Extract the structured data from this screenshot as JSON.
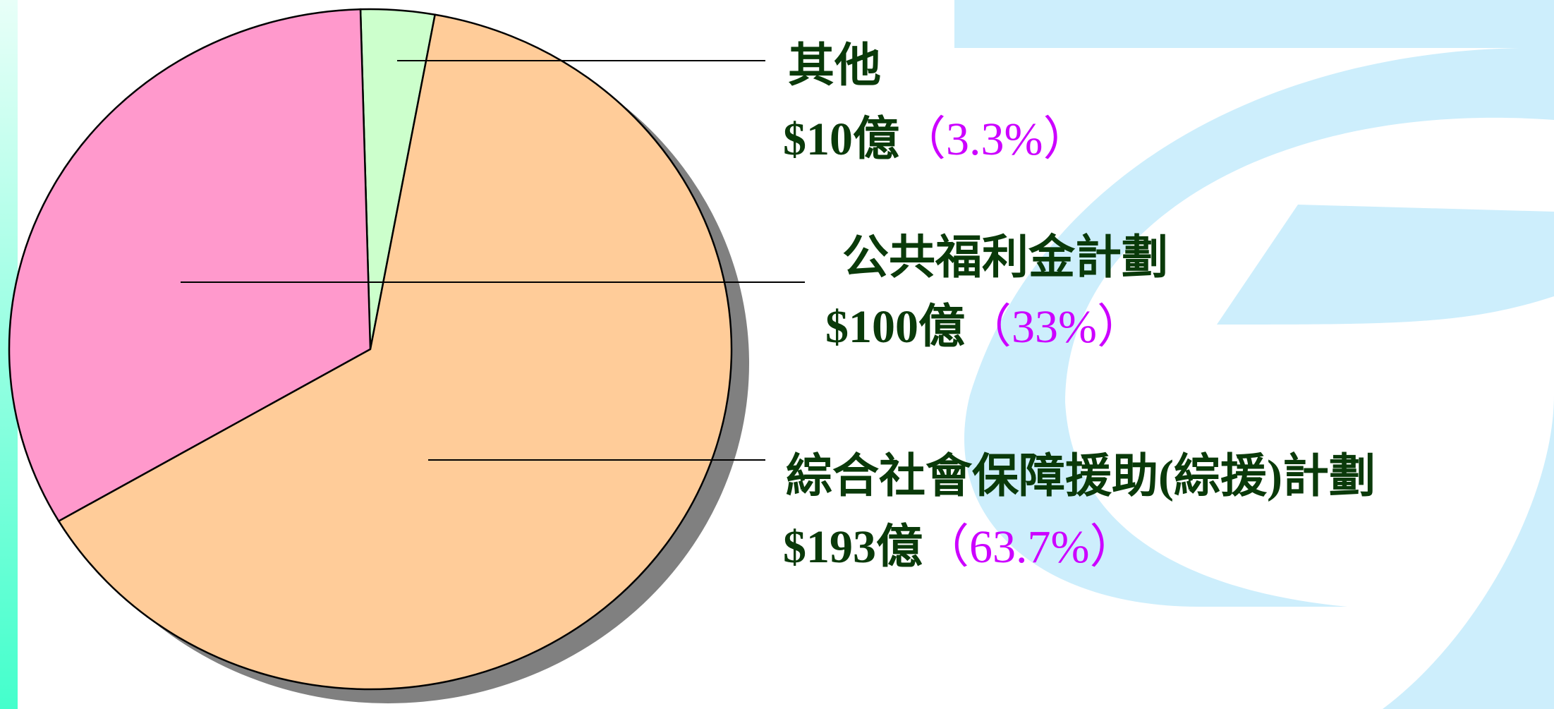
{
  "chart_data": {
    "type": "pie",
    "categories": [
      "其他",
      "公共福利金計劃",
      "綜合社會保障援助(綜援)計劃"
    ],
    "values": [
      3.3,
      33,
      63.7
    ],
    "value_labels": [
      "（3.3%）",
      "（33%）",
      "（63.7%）"
    ],
    "amount_labels": [
      "$10億",
      "$100億",
      "$193億"
    ],
    "colors": [
      "#ccffcc",
      "#ff99cc",
      "#ffcc99"
    ]
  }
}
